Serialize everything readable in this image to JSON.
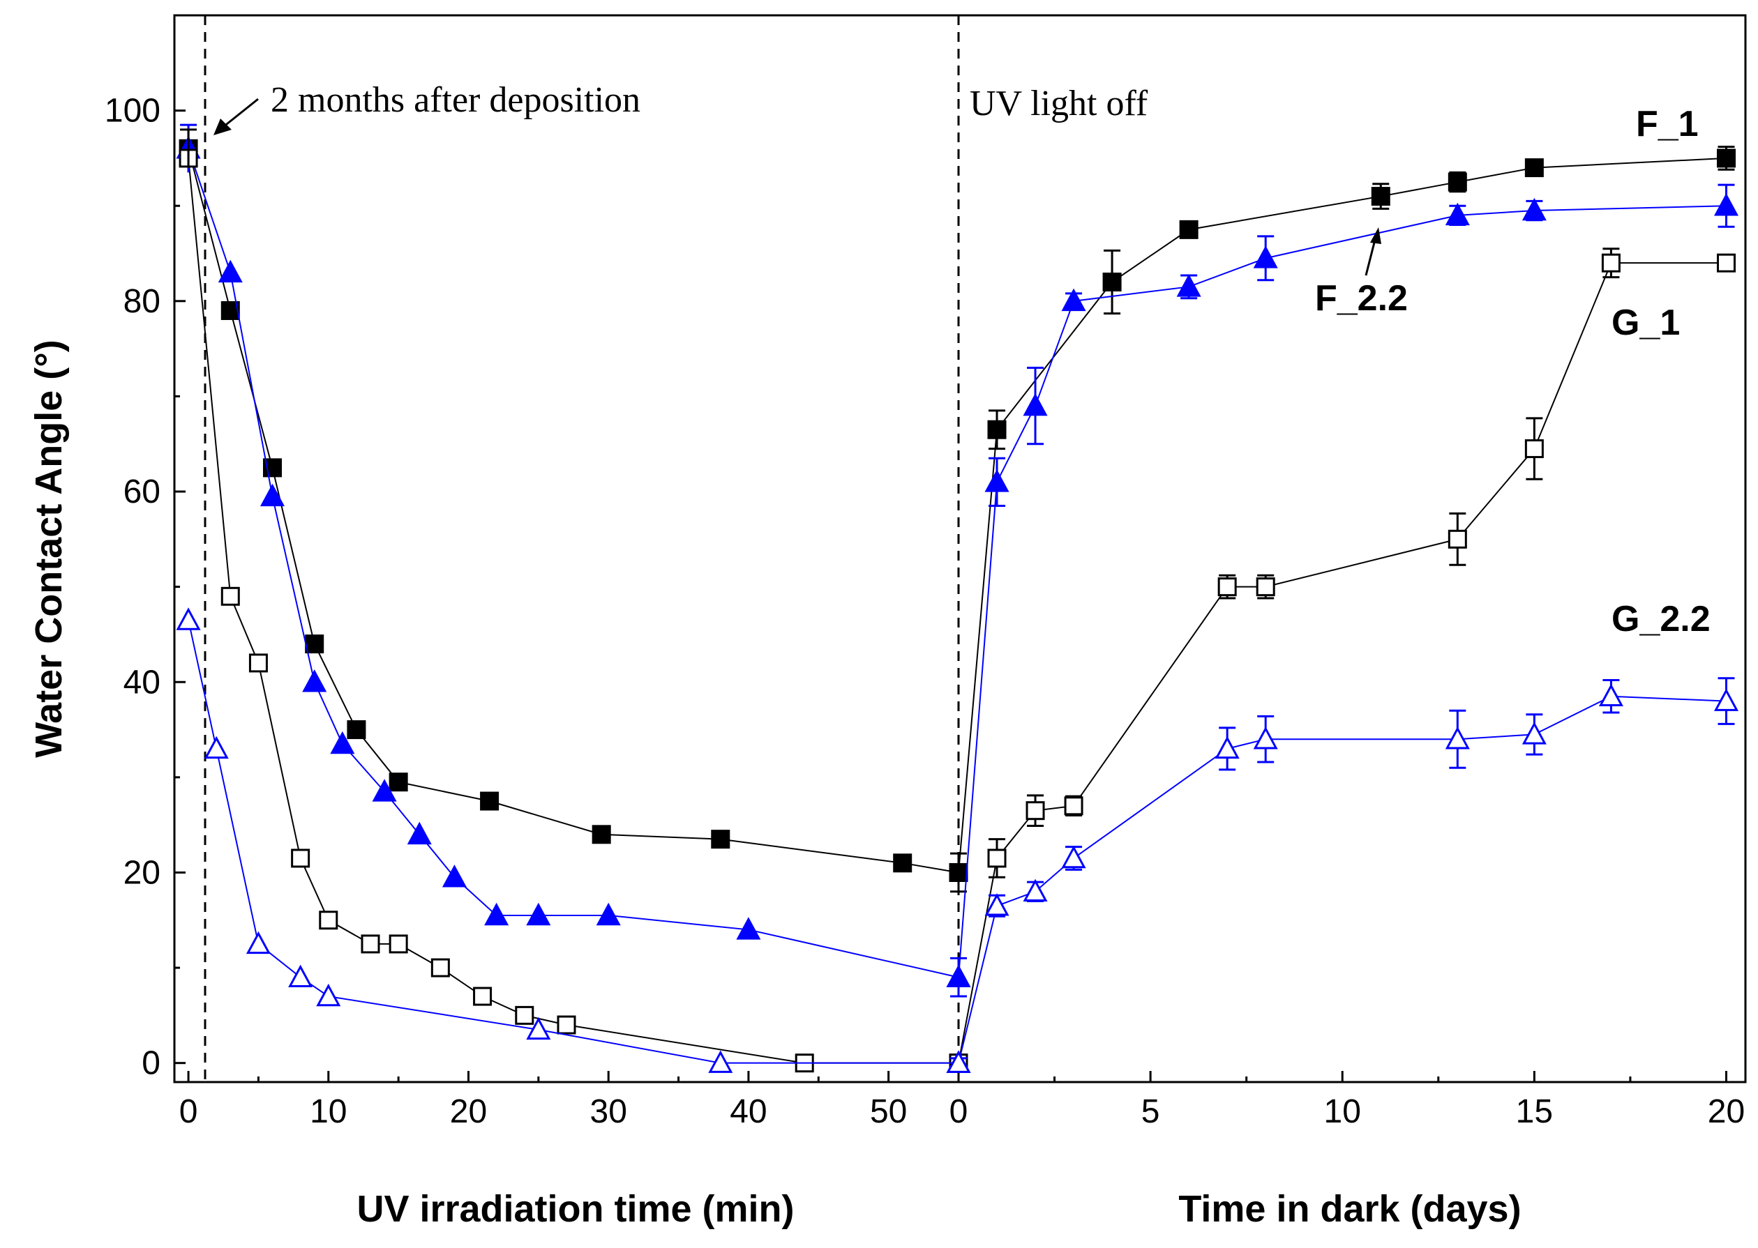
{
  "chart_data": {
    "type": "line",
    "ylabel": "Water Contact Angle (°)",
    "ylim": [
      -2,
      110
    ],
    "yticks": [
      0,
      20,
      40,
      60,
      80,
      100
    ],
    "panels": [
      {
        "name": "uv",
        "xlabel": "UV irradiation time (min)",
        "xlim": [
          -1,
          55
        ],
        "xticks": [
          0,
          10,
          20,
          30,
          40,
          50
        ]
      },
      {
        "name": "dark",
        "xlabel": "Time in dark (days)",
        "xlim": [
          0,
          20.5
        ],
        "xticks": [
          0,
          5,
          10,
          15,
          20
        ]
      }
    ],
    "series": [
      {
        "name": "F_1",
        "color": "#000000",
        "marker": "square",
        "filled": true,
        "uv": {
          "x": [
            0,
            3,
            6,
            9,
            12,
            15,
            21.5,
            29.5,
            38,
            51,
            55
          ],
          "y": [
            96,
            79,
            62.5,
            44,
            35,
            29.5,
            27.5,
            24,
            23.5,
            21,
            20
          ]
        },
        "dark": {
          "x": [
            0,
            1,
            4,
            6,
            11,
            13,
            15,
            20
          ],
          "y": [
            20,
            66.5,
            82,
            87.5,
            91,
            92.5,
            94,
            95
          ],
          "err": [
            2,
            2,
            3.3,
            0.8,
            1.3,
            1,
            0.6,
            1.2
          ]
        }
      },
      {
        "name": "F_2.2",
        "color": "#0000ff",
        "marker": "triangle",
        "filled": true,
        "uv": {
          "x": [
            0,
            3,
            6,
            9,
            11,
            14,
            16.5,
            19,
            22,
            25,
            30,
            40,
            55
          ],
          "y": [
            96,
            83,
            59.5,
            40,
            33.5,
            28.5,
            24,
            19.5,
            15.5,
            15.5,
            15.5,
            14,
            9
          ]
        },
        "dark": {
          "x": [
            0,
            1,
            2,
            3,
            6,
            8,
            13,
            15,
            20
          ],
          "y": [
            9,
            61,
            69,
            80,
            81.5,
            84.5,
            89,
            89.5,
            90
          ],
          "err": [
            2,
            2.5,
            4,
            0.8,
            1.2,
            2.3,
            1,
            1,
            2.2
          ]
        }
      },
      {
        "name": "G_1",
        "color": "#000000",
        "marker": "square",
        "filled": false,
        "uv": {
          "x": [
            0,
            3,
            5,
            8,
            10,
            13,
            15,
            18,
            21,
            24,
            27,
            44,
            55
          ],
          "y": [
            95,
            49,
            42,
            21.5,
            15,
            12.5,
            12.5,
            10,
            7,
            5,
            4,
            0,
            0
          ]
        },
        "dark": {
          "x": [
            0,
            1,
            2,
            3,
            7,
            8,
            13,
            15,
            17,
            20
          ],
          "y": [
            0,
            21.5,
            26.5,
            27,
            50,
            50,
            55,
            64.5,
            84,
            84
          ],
          "err": [
            0.5,
            2,
            1.6,
            1,
            1.2,
            1.2,
            2.7,
            3.2,
            1.5,
            0.5
          ]
        }
      },
      {
        "name": "G_2.2",
        "color": "#0000ff",
        "marker": "triangle",
        "filled": false,
        "uv": {
          "x": [
            0,
            2,
            5,
            8,
            10,
            25,
            38,
            55
          ],
          "y": [
            46.5,
            33,
            12.5,
            9,
            7,
            3.5,
            0,
            0
          ]
        },
        "dark": {
          "x": [
            0,
            1,
            2,
            3,
            7,
            8,
            13,
            15,
            17,
            20
          ],
          "y": [
            0,
            16.5,
            18,
            21.5,
            33,
            34,
            34,
            34.5,
            38.5,
            38
          ],
          "err": [
            0.5,
            1.1,
            1,
            1.2,
            2.2,
            2.4,
            3,
            2.1,
            1.7,
            2.4
          ]
        }
      }
    ],
    "annotations": {
      "deposition": "2 months after deposition",
      "uv_off": "UV light off"
    }
  }
}
